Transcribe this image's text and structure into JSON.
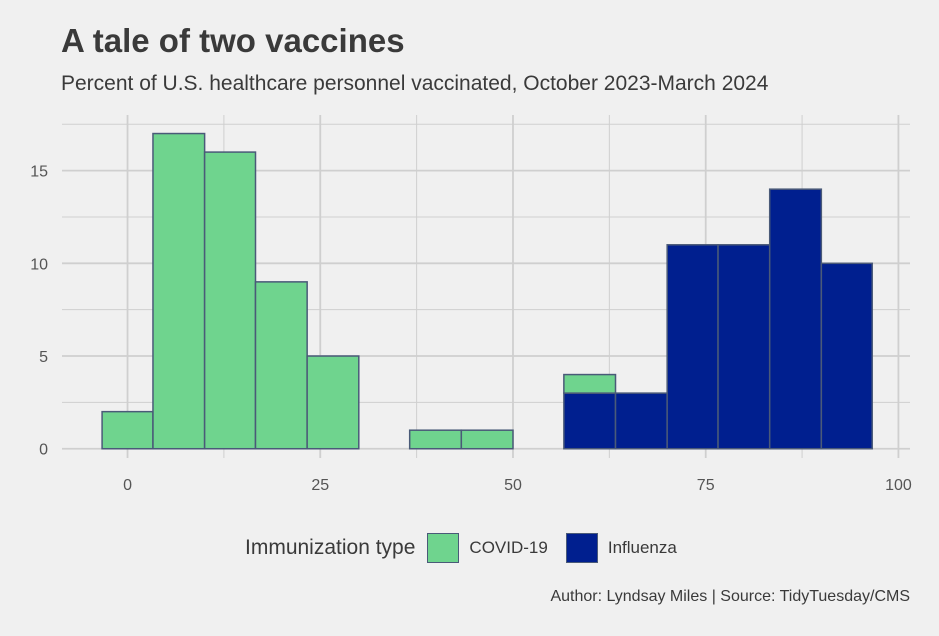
{
  "chart_data": {
    "type": "histogram",
    "title": "A tale of two vaccines",
    "subtitle": "Percent of U.S. healthcare personnel vaccinated, October 2023-March 2024",
    "xlabel": "",
    "ylabel": "",
    "xlim": [
      -8.5,
      101.5
    ],
    "ylim": [
      -0.5,
      18
    ],
    "x_ticks": [
      0,
      25,
      50,
      75,
      100
    ],
    "y_ticks": [
      0,
      5,
      10,
      15
    ],
    "grid": true,
    "legend_position": "bottom",
    "bins": [
      [
        -3.3,
        3.3
      ],
      [
        3.3,
        10.0
      ],
      [
        10.0,
        16.6
      ],
      [
        16.6,
        23.3
      ],
      [
        23.3,
        30.0
      ],
      [
        30.0,
        36.6
      ],
      [
        36.6,
        43.3
      ],
      [
        43.3,
        50.0
      ],
      [
        50.0,
        56.6
      ],
      [
        56.6,
        63.3
      ],
      [
        63.3,
        70.0
      ],
      [
        70.0,
        76.6
      ],
      [
        76.6,
        83.3
      ],
      [
        83.3,
        90.0
      ],
      [
        90.0,
        96.6
      ]
    ],
    "series": [
      {
        "name": "Influenza",
        "color": "#001f8f",
        "counts": [
          0,
          0,
          0,
          0,
          0,
          0,
          0,
          0,
          0,
          3,
          3,
          11,
          11,
          14,
          10
        ]
      },
      {
        "name": "COVID-19",
        "color": "#6fd48e",
        "counts": [
          2,
          17,
          16,
          9,
          5,
          0,
          1,
          1,
          0,
          1,
          0,
          0,
          0,
          0,
          0
        ]
      }
    ]
  },
  "legend": {
    "title": "Immunization type",
    "items": [
      {
        "label": "COVID-19",
        "color": "#6fd48e"
      },
      {
        "label": "Influenza",
        "color": "#001f8f"
      }
    ]
  },
  "caption": "Author: Lyndsay Miles | Source: TidyTuesday/CMS",
  "colors": {
    "background": "#f0f0f0",
    "grid": "#cfcfcf",
    "bar_outline": "#4a5a78",
    "text": "#3a3a3a"
  }
}
